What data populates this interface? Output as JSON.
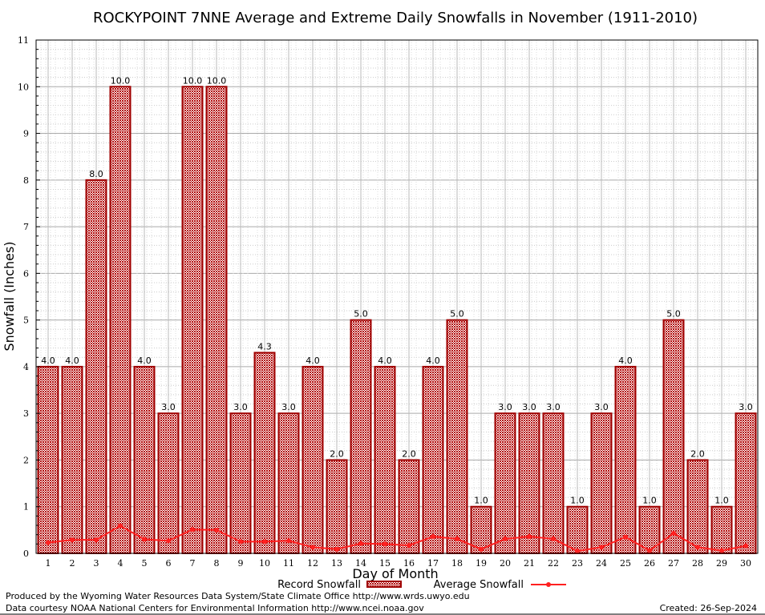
{
  "chart_data": {
    "type": "bar",
    "title": "ROCKYPOINT 7NNE Average and Extreme Daily Snowfalls in November (1911-2010)",
    "xlabel": "Day of Month",
    "ylabel": "Snowfall (Inches)",
    "ylim": [
      0,
      11
    ],
    "yticks": [
      "0",
      "1",
      "2",
      "3",
      "4",
      "5",
      "6",
      "7",
      "8",
      "9",
      "10",
      "11"
    ],
    "grid": true,
    "legend_placement": "bottom",
    "categories": [
      "1",
      "2",
      "3",
      "4",
      "5",
      "6",
      "7",
      "8",
      "9",
      "10",
      "11",
      "12",
      "13",
      "14",
      "15",
      "16",
      "17",
      "18",
      "19",
      "20",
      "21",
      "22",
      "23",
      "24",
      "25",
      "26",
      "27",
      "28",
      "29",
      "30"
    ],
    "series": [
      {
        "name": "Record Snowfall",
        "type": "bar",
        "color": "#a00000",
        "values": [
          4.0,
          4.0,
          8.0,
          10.0,
          4.0,
          3.0,
          10.0,
          10.0,
          3.0,
          4.3,
          3.0,
          4.0,
          2.0,
          5.0,
          4.0,
          2.0,
          4.0,
          5.0,
          1.0,
          3.0,
          3.0,
          3.0,
          1.0,
          3.0,
          4.0,
          1.0,
          5.0,
          2.0,
          1.0,
          3.0
        ],
        "labels": [
          "4.0",
          "4.0",
          "8.0",
          "10.0",
          "4.0",
          "3.0",
          "10.0",
          "10.0",
          "3.0",
          "4.3",
          "3.0",
          "4.0",
          "2.0",
          "5.0",
          "4.0",
          "2.0",
          "4.0",
          "5.0",
          "1.0",
          "3.0",
          "3.0",
          "3.0",
          "1.0",
          "3.0",
          "4.0",
          "1.0",
          "5.0",
          "2.0",
          "1.0",
          "3.0"
        ]
      },
      {
        "name": "Average Snowfall",
        "type": "line",
        "color": "#ff2020",
        "values": [
          0.23,
          0.29,
          0.29,
          0.59,
          0.3,
          0.27,
          0.51,
          0.5,
          0.25,
          0.25,
          0.27,
          0.13,
          0.09,
          0.21,
          0.2,
          0.17,
          0.36,
          0.31,
          0.09,
          0.31,
          0.36,
          0.31,
          0.05,
          0.13,
          0.35,
          0.06,
          0.43,
          0.13,
          0.06,
          0.16
        ]
      }
    ]
  },
  "footer": {
    "line1": "Produced by the Wyoming Water Resources Data System/State Climate Office http://www.wrds.uwyo.edu",
    "line2": "Data courtesy NOAA National Centers for Environmental Information http://www.ncei.noaa.gov",
    "created": "Created:  26-Sep-2024"
  }
}
